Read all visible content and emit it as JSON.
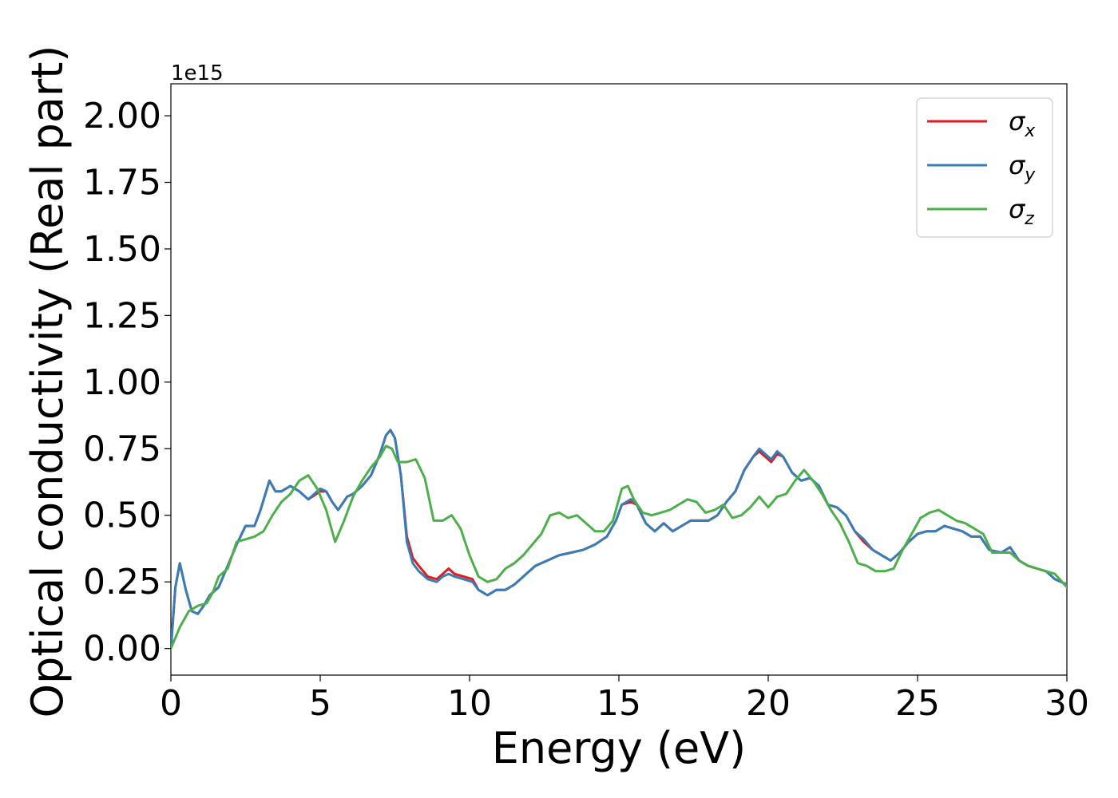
{
  "chart_data": {
    "type": "line",
    "xlabel": "Energy (eV)",
    "ylabel": "Optical conductivity (Real part)",
    "y_offset_label": "1e15",
    "xlim": [
      0,
      30
    ],
    "ylim": [
      -0.1,
      2.12
    ],
    "x_ticks": [
      0,
      5,
      10,
      15,
      20,
      25,
      30
    ],
    "x_tick_labels": [
      "0",
      "5",
      "10",
      "15",
      "20",
      "25",
      "30"
    ],
    "y_ticks": [
      0.0,
      0.25,
      0.5,
      0.75,
      1.0,
      1.25,
      1.5,
      1.75,
      2.0
    ],
    "y_tick_labels": [
      "0.00",
      "0.25",
      "0.50",
      "0.75",
      "1.00",
      "1.25",
      "1.50",
      "1.75",
      "2.00"
    ],
    "grid": false,
    "legend_position": "top-right",
    "series": [
      {
        "name": "σx",
        "symbol": "σ",
        "subscript": "x",
        "color": "#e41a1c",
        "x": [
          0,
          0.15,
          0.3,
          0.5,
          0.7,
          0.9,
          1.1,
          1.3,
          1.6,
          1.9,
          2.2,
          2.5,
          2.8,
          3.0,
          3.3,
          3.5,
          3.7,
          4.0,
          4.3,
          4.6,
          5.0,
          5.2,
          5.4,
          5.6,
          5.9,
          6.1,
          6.4,
          6.7,
          7.0,
          7.2,
          7.35,
          7.5,
          7.7,
          7.9,
          8.1,
          8.3,
          8.6,
          8.9,
          9.1,
          9.3,
          9.5,
          9.8,
          10.1,
          10.3,
          10.6,
          10.9,
          11.2,
          11.5,
          11.8,
          12.2,
          12.6,
          13.0,
          13.4,
          13.8,
          14.2,
          14.6,
          14.9,
          15.1,
          15.4,
          15.6,
          15.9,
          16.2,
          16.5,
          16.8,
          17.1,
          17.4,
          17.7,
          18.0,
          18.3,
          18.6,
          18.9,
          19.2,
          19.5,
          19.7,
          19.9,
          20.1,
          20.3,
          20.5,
          20.8,
          21.1,
          21.4,
          21.7,
          22.0,
          22.3,
          22.6,
          22.9,
          23.2,
          23.5,
          23.8,
          24.1,
          24.4,
          24.7,
          25.0,
          25.3,
          25.6,
          25.9,
          26.2,
          26.5,
          26.8,
          27.1,
          27.4,
          27.8,
          28.1,
          28.4,
          28.7,
          29.0,
          29.3,
          29.6,
          30.0
        ],
        "y": [
          0.0,
          0.23,
          0.32,
          0.22,
          0.14,
          0.13,
          0.16,
          0.2,
          0.23,
          0.31,
          0.39,
          0.46,
          0.46,
          0.52,
          0.63,
          0.59,
          0.59,
          0.61,
          0.59,
          0.56,
          0.59,
          0.59,
          0.55,
          0.52,
          0.57,
          0.58,
          0.61,
          0.65,
          0.73,
          0.8,
          0.82,
          0.79,
          0.65,
          0.42,
          0.34,
          0.31,
          0.27,
          0.26,
          0.28,
          0.3,
          0.28,
          0.27,
          0.26,
          0.22,
          0.2,
          0.22,
          0.22,
          0.24,
          0.27,
          0.31,
          0.33,
          0.35,
          0.36,
          0.37,
          0.39,
          0.42,
          0.48,
          0.54,
          0.55,
          0.54,
          0.47,
          0.44,
          0.47,
          0.44,
          0.46,
          0.48,
          0.48,
          0.48,
          0.5,
          0.55,
          0.59,
          0.67,
          0.72,
          0.74,
          0.72,
          0.7,
          0.73,
          0.72,
          0.66,
          0.63,
          0.64,
          0.61,
          0.54,
          0.53,
          0.5,
          0.44,
          0.4,
          0.37,
          0.35,
          0.33,
          0.36,
          0.4,
          0.43,
          0.44,
          0.44,
          0.46,
          0.45,
          0.44,
          0.42,
          0.42,
          0.37,
          0.36,
          0.38,
          0.33,
          0.31,
          0.3,
          0.29,
          0.26,
          0.24
        ]
      },
      {
        "name": "σy",
        "symbol": "σ",
        "subscript": "y",
        "color": "#377eb8",
        "x": [
          0,
          0.15,
          0.3,
          0.5,
          0.7,
          0.9,
          1.1,
          1.3,
          1.6,
          1.9,
          2.2,
          2.5,
          2.8,
          3.0,
          3.3,
          3.5,
          3.7,
          4.0,
          4.3,
          4.6,
          5.0,
          5.2,
          5.4,
          5.6,
          5.9,
          6.1,
          6.4,
          6.7,
          7.0,
          7.2,
          7.35,
          7.5,
          7.7,
          7.9,
          8.1,
          8.3,
          8.6,
          8.9,
          9.1,
          9.3,
          9.5,
          9.8,
          10.1,
          10.3,
          10.6,
          10.9,
          11.2,
          11.5,
          11.8,
          12.2,
          12.6,
          13.0,
          13.4,
          13.8,
          14.2,
          14.6,
          14.9,
          15.1,
          15.4,
          15.6,
          15.9,
          16.2,
          16.5,
          16.8,
          17.1,
          17.4,
          17.7,
          18.0,
          18.3,
          18.6,
          18.9,
          19.2,
          19.5,
          19.7,
          19.9,
          20.1,
          20.3,
          20.5,
          20.8,
          21.1,
          21.4,
          21.7,
          22.0,
          22.3,
          22.6,
          22.9,
          23.2,
          23.5,
          23.8,
          24.1,
          24.4,
          24.7,
          25.0,
          25.3,
          25.6,
          25.9,
          26.2,
          26.5,
          26.8,
          27.1,
          27.4,
          27.8,
          28.1,
          28.4,
          28.7,
          29.0,
          29.3,
          29.6,
          30.0
        ],
        "y": [
          0.0,
          0.23,
          0.32,
          0.22,
          0.14,
          0.13,
          0.16,
          0.2,
          0.23,
          0.31,
          0.39,
          0.46,
          0.46,
          0.52,
          0.63,
          0.59,
          0.59,
          0.61,
          0.59,
          0.56,
          0.6,
          0.59,
          0.55,
          0.52,
          0.57,
          0.58,
          0.61,
          0.65,
          0.73,
          0.8,
          0.82,
          0.79,
          0.65,
          0.4,
          0.32,
          0.29,
          0.26,
          0.25,
          0.27,
          0.28,
          0.27,
          0.26,
          0.25,
          0.22,
          0.2,
          0.22,
          0.22,
          0.24,
          0.27,
          0.31,
          0.33,
          0.35,
          0.36,
          0.37,
          0.39,
          0.42,
          0.48,
          0.54,
          0.56,
          0.54,
          0.47,
          0.44,
          0.47,
          0.44,
          0.46,
          0.48,
          0.48,
          0.48,
          0.5,
          0.55,
          0.59,
          0.67,
          0.72,
          0.75,
          0.73,
          0.71,
          0.74,
          0.72,
          0.66,
          0.63,
          0.64,
          0.61,
          0.54,
          0.53,
          0.5,
          0.44,
          0.41,
          0.37,
          0.35,
          0.33,
          0.36,
          0.4,
          0.43,
          0.44,
          0.44,
          0.46,
          0.45,
          0.44,
          0.42,
          0.42,
          0.37,
          0.36,
          0.38,
          0.33,
          0.31,
          0.3,
          0.29,
          0.26,
          0.24
        ]
      },
      {
        "name": "σz",
        "symbol": "σ",
        "subscript": "z",
        "color": "#4daf4a",
        "x": [
          0,
          0.3,
          0.6,
          0.9,
          1.2,
          1.4,
          1.6,
          1.9,
          2.2,
          2.5,
          2.8,
          3.1,
          3.4,
          3.7,
          4.0,
          4.3,
          4.6,
          4.9,
          5.2,
          5.5,
          5.8,
          6.1,
          6.4,
          6.7,
          7.0,
          7.2,
          7.4,
          7.6,
          7.9,
          8.2,
          8.5,
          8.8,
          9.1,
          9.4,
          9.7,
          10.0,
          10.3,
          10.6,
          10.9,
          11.2,
          11.5,
          11.8,
          12.1,
          12.4,
          12.7,
          13.0,
          13.3,
          13.6,
          13.9,
          14.2,
          14.5,
          14.8,
          15.1,
          15.3,
          15.5,
          15.8,
          16.1,
          16.4,
          16.7,
          17.0,
          17.3,
          17.6,
          17.9,
          18.2,
          18.5,
          18.8,
          19.1,
          19.4,
          19.7,
          20.0,
          20.3,
          20.6,
          20.9,
          21.2,
          21.5,
          21.8,
          22.1,
          22.4,
          22.7,
          23.0,
          23.3,
          23.6,
          23.9,
          24.2,
          24.5,
          24.8,
          25.1,
          25.4,
          25.7,
          26.0,
          26.3,
          26.6,
          26.9,
          27.2,
          27.5,
          27.8,
          28.1,
          28.4,
          28.7,
          29.0,
          29.3,
          29.6,
          30.0
        ],
        "y": [
          0.0,
          0.08,
          0.14,
          0.16,
          0.17,
          0.21,
          0.27,
          0.3,
          0.4,
          0.41,
          0.42,
          0.44,
          0.5,
          0.55,
          0.58,
          0.63,
          0.65,
          0.6,
          0.52,
          0.4,
          0.48,
          0.57,
          0.63,
          0.68,
          0.72,
          0.76,
          0.75,
          0.7,
          0.7,
          0.71,
          0.64,
          0.48,
          0.48,
          0.5,
          0.45,
          0.35,
          0.27,
          0.25,
          0.26,
          0.3,
          0.32,
          0.35,
          0.39,
          0.43,
          0.5,
          0.51,
          0.49,
          0.5,
          0.47,
          0.44,
          0.44,
          0.48,
          0.6,
          0.61,
          0.56,
          0.51,
          0.5,
          0.51,
          0.52,
          0.54,
          0.56,
          0.55,
          0.51,
          0.52,
          0.54,
          0.49,
          0.5,
          0.53,
          0.57,
          0.53,
          0.57,
          0.58,
          0.63,
          0.67,
          0.63,
          0.58,
          0.52,
          0.47,
          0.4,
          0.32,
          0.31,
          0.29,
          0.29,
          0.3,
          0.37,
          0.43,
          0.49,
          0.51,
          0.52,
          0.5,
          0.48,
          0.47,
          0.45,
          0.43,
          0.36,
          0.36,
          0.36,
          0.33,
          0.31,
          0.3,
          0.29,
          0.28,
          0.23
        ]
      }
    ]
  }
}
